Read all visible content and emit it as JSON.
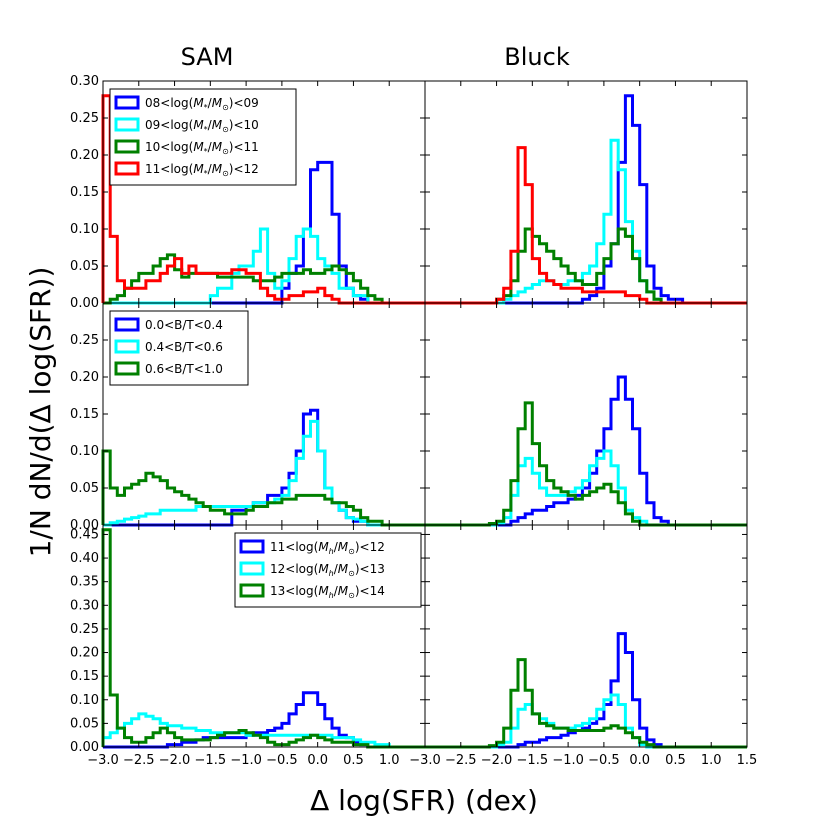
{
  "chart_data": {
    "type": "histogram-grid",
    "column_titles": [
      "SAM",
      "Bluck"
    ],
    "xlabel": "Δ log(SFR) (dex)",
    "ylabel": "1/N dN/d(Δ log(SFR))",
    "xlim": [
      -3.0,
      1.5
    ],
    "x_ticks_left": [
      "−3.0",
      "−2.5",
      "−2.0",
      "−1.5",
      "−1.0",
      "−0.5",
      "0.0",
      "0.5",
      "1.0"
    ],
    "x_ticks_right": [
      "−3.0",
      "−2.5",
      "−2.0",
      "−1.5",
      "−1.0",
      "−0.5",
      "0.0",
      "0.5",
      "1.0",
      "1.5"
    ],
    "bin_edges": [
      -3.0,
      -2.9,
      -2.8,
      -2.7,
      -2.6,
      -2.5,
      -2.4,
      -2.3,
      -2.2,
      -2.1,
      -2.0,
      -1.9,
      -1.8,
      -1.7,
      -1.6,
      -1.5,
      -1.4,
      -1.3,
      -1.2,
      -1.1,
      -1.0,
      -0.9,
      -0.8,
      -0.7,
      -0.6,
      -0.5,
      -0.4,
      -0.3,
      -0.2,
      -0.1,
      0.0,
      0.1,
      0.2,
      0.3,
      0.4,
      0.5,
      0.6,
      0.7,
      0.8,
      0.9,
      1.0,
      1.1,
      1.2,
      1.3,
      1.4,
      1.5
    ],
    "rows": [
      {
        "ylim": [
          0,
          0.3
        ],
        "yticks": [
          "0.00",
          "0.05",
          "0.10",
          "0.15",
          "0.20",
          "0.25",
          "0.30"
        ],
        "legend_col": 0,
        "legend_pos": "top-left",
        "series": [
          {
            "name": "08<log(",
            "sub": "*",
            "tail": ")<09",
            "color": "#0000ff"
          },
          {
            "name": "09<log(",
            "sub": "*",
            "tail": ")<10",
            "color": "#00ffff"
          },
          {
            "name": "10<log(",
            "sub": "*",
            "tail": ")<11",
            "color": "#008000"
          },
          {
            "name": "11<log(",
            "sub": "*",
            "tail": ")<12",
            "color": "#ff0000"
          }
        ],
        "sam": [
          [
            0,
            0,
            0,
            0,
            0,
            0,
            0,
            0,
            0,
            0,
            0,
            0,
            0,
            0,
            0,
            0,
            0,
            0,
            0,
            0,
            0,
            0,
            0,
            0,
            0,
            0.02,
            0.04,
            0.05,
            0.1,
            0.18,
            0.19,
            0.19,
            0.12,
            0.05,
            0.02,
            0.01,
            0.005,
            0,
            0,
            0,
            0,
            0,
            0,
            0,
            0
          ],
          [
            0,
            0,
            0,
            0,
            0,
            0,
            0,
            0,
            0,
            0,
            0,
            0,
            0,
            0,
            0,
            0.01,
            0.02,
            0.02,
            0.04,
            0.05,
            0.05,
            0.07,
            0.1,
            0.04,
            0.02,
            0.03,
            0.06,
            0.09,
            0.1,
            0.09,
            0.06,
            0.05,
            0.04,
            0.02,
            0.02,
            0.01,
            0.01,
            0,
            0,
            0,
            0,
            0,
            0,
            0,
            0
          ],
          [
            0,
            0.005,
            0.01,
            0.02,
            0.03,
            0.04,
            0.04,
            0.05,
            0.06,
            0.065,
            0.045,
            0.035,
            0.04,
            0.04,
            0.04,
            0.04,
            0.035,
            0.035,
            0.035,
            0.035,
            0.035,
            0.03,
            0.03,
            0.03,
            0.035,
            0.04,
            0.04,
            0.04,
            0.045,
            0.04,
            0.04,
            0.045,
            0.05,
            0.045,
            0.04,
            0.03,
            0.02,
            0.01,
            0.005,
            0,
            0,
            0,
            0,
            0,
            0
          ],
          [
            0.28,
            0.09,
            0.03,
            0.02,
            0.02,
            0.02,
            0.03,
            0.03,
            0.04,
            0.05,
            0.06,
            0.04,
            0.05,
            0.04,
            0.04,
            0.04,
            0.04,
            0.04,
            0.045,
            0.045,
            0.04,
            0.04,
            0.02,
            0.01,
            0.005,
            0.005,
            0.01,
            0.01,
            0.015,
            0.015,
            0.02,
            0.01,
            0.005,
            0,
            0,
            0,
            0,
            0,
            0,
            0,
            0,
            0,
            0,
            0,
            0
          ]
        ],
        "bluck": [
          [
            0,
            0,
            0,
            0,
            0,
            0,
            0,
            0,
            0,
            0,
            0,
            0,
            0,
            0,
            0,
            0,
            0,
            0,
            0,
            0,
            0,
            0,
            0.005,
            0.01,
            0.02,
            0.05,
            0.08,
            0.19,
            0.28,
            0.24,
            0.16,
            0.05,
            0.02,
            0.01,
            0.005,
            0.005,
            0,
            0,
            0,
            0,
            0,
            0,
            0,
            0,
            0
          ],
          [
            0,
            0,
            0,
            0,
            0,
            0,
            0,
            0,
            0,
            0,
            0,
            0.005,
            0.01,
            0.015,
            0.02,
            0.025,
            0.03,
            0.03,
            0.025,
            0.025,
            0.03,
            0.03,
            0.04,
            0.05,
            0.08,
            0.12,
            0.22,
            0.18,
            0.11,
            0.07,
            0.03,
            0.015,
            0.005,
            0,
            0,
            0,
            0,
            0,
            0,
            0,
            0,
            0,
            0,
            0,
            0
          ],
          [
            0,
            0,
            0,
            0,
            0,
            0,
            0,
            0,
            0,
            0,
            0.005,
            0.01,
            0.03,
            0.07,
            0.1,
            0.09,
            0.08,
            0.07,
            0.06,
            0.05,
            0.04,
            0.03,
            0.025,
            0.025,
            0.04,
            0.06,
            0.08,
            0.1,
            0.09,
            0.06,
            0.03,
            0.015,
            0.005,
            0,
            0,
            0,
            0,
            0,
            0,
            0,
            0,
            0,
            0,
            0,
            0
          ],
          [
            0,
            0,
            0,
            0,
            0,
            0,
            0,
            0,
            0,
            0,
            0.005,
            0.02,
            0.07,
            0.21,
            0.16,
            0.06,
            0.04,
            0.03,
            0.025,
            0.02,
            0.02,
            0.02,
            0.015,
            0.015,
            0.015,
            0.015,
            0.015,
            0.015,
            0.01,
            0.01,
            0.005,
            0,
            0,
            0,
            0,
            0,
            0,
            0,
            0,
            0,
            0,
            0,
            0,
            0,
            0
          ]
        ]
      },
      {
        "ylim": [
          0,
          0.3
        ],
        "yticks": [
          "0.00",
          "0.05",
          "0.10",
          "0.15",
          "0.20",
          "0.25"
        ],
        "legend_col": 0,
        "legend_pos": "top-left",
        "series": [
          {
            "name": "0.0<B/T<0.4",
            "color": "#0000ff"
          },
          {
            "name": "0.4<B/T<0.6",
            "color": "#00ffff"
          },
          {
            "name": "0.6<B/T<1.0",
            "color": "#008000"
          }
        ],
        "sam": [
          [
            0,
            0,
            0,
            0,
            0,
            0,
            0,
            0,
            0,
            0,
            0,
            0,
            0,
            0,
            0,
            0,
            0,
            0,
            0.02,
            0.02,
            0.025,
            0.03,
            0.03,
            0.04,
            0.04,
            0.05,
            0.07,
            0.1,
            0.15,
            0.155,
            0.1,
            0.05,
            0.03,
            0.02,
            0.01,
            0.005,
            0.005,
            0,
            0,
            0,
            0,
            0,
            0,
            0,
            0
          ],
          [
            0,
            0.003,
            0.005,
            0.008,
            0.01,
            0.012,
            0.015,
            0.015,
            0.02,
            0.02,
            0.02,
            0.02,
            0.02,
            0.025,
            0.025,
            0.025,
            0.025,
            0.025,
            0.025,
            0.025,
            0.025,
            0.03,
            0.03,
            0.03,
            0.035,
            0.04,
            0.06,
            0.09,
            0.12,
            0.14,
            0.1,
            0.05,
            0.03,
            0.02,
            0.01,
            0.008,
            0.005,
            0,
            0,
            0,
            0,
            0,
            0,
            0,
            0
          ],
          [
            0.1,
            0.05,
            0.04,
            0.05,
            0.055,
            0.06,
            0.07,
            0.065,
            0.06,
            0.05,
            0.045,
            0.04,
            0.035,
            0.03,
            0.025,
            0.02,
            0.02,
            0.015,
            0.015,
            0.015,
            0.02,
            0.025,
            0.025,
            0.03,
            0.03,
            0.035,
            0.035,
            0.04,
            0.04,
            0.04,
            0.04,
            0.035,
            0.03,
            0.03,
            0.025,
            0.02,
            0.01,
            0.005,
            0.005,
            0,
            0,
            0,
            0,
            0,
            0
          ]
        ],
        "bluck": [
          [
            0,
            0,
            0,
            0,
            0,
            0,
            0,
            0,
            0,
            0,
            0,
            0,
            0.005,
            0.01,
            0.015,
            0.02,
            0.02,
            0.025,
            0.03,
            0.03,
            0.035,
            0.04,
            0.05,
            0.07,
            0.1,
            0.13,
            0.17,
            0.2,
            0.17,
            0.13,
            0.07,
            0.03,
            0.01,
            0.005,
            0,
            0,
            0,
            0,
            0,
            0,
            0,
            0,
            0,
            0,
            0
          ],
          [
            0,
            0,
            0,
            0,
            0,
            0,
            0,
            0,
            0,
            0,
            0.003,
            0.01,
            0.04,
            0.08,
            0.09,
            0.07,
            0.05,
            0.04,
            0.04,
            0.04,
            0.045,
            0.05,
            0.06,
            0.08,
            0.09,
            0.1,
            0.08,
            0.05,
            0.02,
            0.01,
            0.005,
            0,
            0,
            0,
            0,
            0,
            0,
            0,
            0,
            0,
            0,
            0,
            0,
            0,
            0
          ],
          [
            0,
            0,
            0,
            0,
            0,
            0,
            0,
            0,
            0,
            0.002,
            0.005,
            0.02,
            0.06,
            0.13,
            0.165,
            0.11,
            0.08,
            0.06,
            0.05,
            0.045,
            0.04,
            0.035,
            0.04,
            0.045,
            0.05,
            0.055,
            0.045,
            0.03,
            0.015,
            0.005,
            0,
            0,
            0,
            0,
            0,
            0,
            0,
            0,
            0,
            0,
            0,
            0,
            0,
            0,
            0
          ]
        ]
      },
      {
        "ylim": [
          0,
          0.47
        ],
        "yticks": [
          "0.00",
          "0.05",
          "0.10",
          "0.15",
          "0.20",
          "0.25",
          "0.30",
          "0.35",
          "0.40",
          "0.45"
        ],
        "legend_col": 0,
        "legend_pos": "top-right",
        "series": [
          {
            "name": "11<log(",
            "sub": "h",
            "tail": ")<12",
            "color": "#0000ff"
          },
          {
            "name": "12<log(",
            "sub": "h",
            "tail": ")<13",
            "color": "#00ffff"
          },
          {
            "name": "13<log(",
            "sub": "h",
            "tail": ")<14",
            "color": "#008000"
          }
        ],
        "sam": [
          [
            0,
            0,
            0,
            0,
            0,
            0,
            0,
            0,
            0,
            0.005,
            0.005,
            0.01,
            0.01,
            0.015,
            0.02,
            0.02,
            0.02,
            0.02,
            0.02,
            0.02,
            0.025,
            0.03,
            0.03,
            0.035,
            0.04,
            0.05,
            0.07,
            0.09,
            0.115,
            0.115,
            0.09,
            0.06,
            0.04,
            0.025,
            0.02,
            0.01,
            0.005,
            0,
            0,
            0,
            0,
            0,
            0,
            0,
            0
          ],
          [
            0.02,
            0.03,
            0.04,
            0.05,
            0.06,
            0.07,
            0.065,
            0.06,
            0.05,
            0.045,
            0.045,
            0.04,
            0.04,
            0.035,
            0.035,
            0.03,
            0.03,
            0.03,
            0.03,
            0.03,
            0.025,
            0.025,
            0.025,
            0.025,
            0.025,
            0.025,
            0.025,
            0.025,
            0.025,
            0.025,
            0.025,
            0.025,
            0.02,
            0.02,
            0.02,
            0.015,
            0.01,
            0.01,
            0.005,
            0.005,
            0,
            0,
            0,
            0,
            0
          ],
          [
            0.46,
            0.11,
            0.04,
            0.02,
            0.01,
            0.01,
            0.02,
            0.03,
            0.04,
            0.03,
            0.02,
            0.015,
            0.015,
            0.015,
            0.015,
            0.02,
            0.025,
            0.03,
            0.03,
            0.035,
            0.03,
            0.025,
            0.02,
            0.01,
            0.005,
            0.005,
            0.01,
            0.015,
            0.02,
            0.025,
            0.02,
            0.015,
            0.01,
            0.01,
            0.01,
            0.005,
            0.005,
            0,
            0,
            0,
            0,
            0,
            0,
            0,
            0
          ]
        ],
        "bluck": [
          [
            0,
            0,
            0,
            0,
            0,
            0,
            0,
            0,
            0,
            0,
            0,
            0,
            0,
            0.005,
            0.01,
            0.01,
            0.015,
            0.02,
            0.02,
            0.025,
            0.03,
            0.035,
            0.04,
            0.05,
            0.06,
            0.09,
            0.14,
            0.24,
            0.2,
            0.1,
            0.04,
            0.015,
            0.005,
            0,
            0,
            0,
            0,
            0,
            0,
            0,
            0,
            0,
            0,
            0,
            0
          ],
          [
            0,
            0,
            0,
            0,
            0,
            0,
            0,
            0,
            0,
            0,
            0.005,
            0.01,
            0.04,
            0.08,
            0.09,
            0.07,
            0.06,
            0.05,
            0.04,
            0.04,
            0.04,
            0.045,
            0.05,
            0.06,
            0.08,
            0.1,
            0.11,
            0.09,
            0.04,
            0.02,
            0.005,
            0,
            0,
            0,
            0,
            0,
            0,
            0,
            0,
            0,
            0,
            0,
            0,
            0,
            0
          ],
          [
            0,
            0,
            0,
            0,
            0,
            0,
            0,
            0,
            0,
            0.003,
            0.01,
            0.04,
            0.12,
            0.185,
            0.12,
            0.07,
            0.05,
            0.045,
            0.04,
            0.04,
            0.035,
            0.035,
            0.035,
            0.035,
            0.035,
            0.04,
            0.045,
            0.04,
            0.03,
            0.02,
            0.01,
            0.005,
            0,
            0,
            0,
            0,
            0,
            0,
            0,
            0,
            0,
            0,
            0,
            0,
            0
          ]
        ]
      }
    ]
  }
}
